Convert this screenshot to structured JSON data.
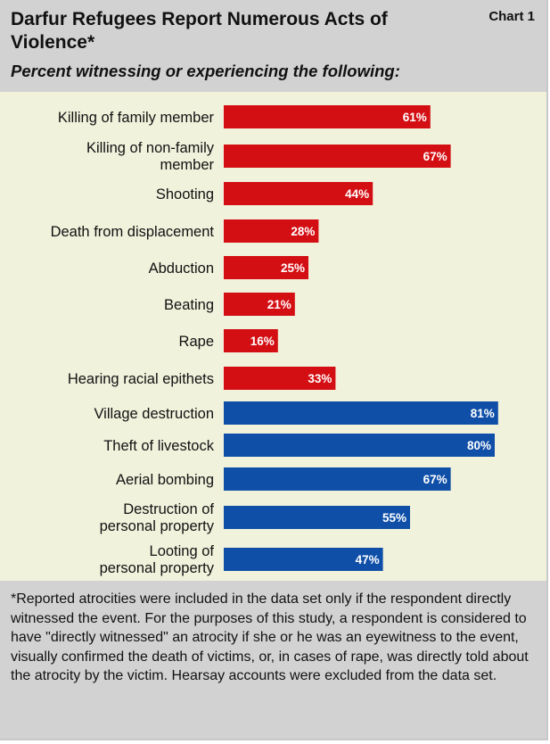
{
  "header": {
    "title": "Darfur Refugees Report Numerous Acts of Violence*",
    "chart_id": "Chart 1",
    "subtitle": "Percent witnessing or experiencing the following:"
  },
  "footer": {
    "note": "*Reported atrocities were included in the data set only if the respondent directly witnessed the event.  For the purposes of this study, a respondent is considered to have \"directly witnessed\" an atrocity if she or he was an eyewitness to the event, visually confirmed the death of victims, or, in cases of rape, was directly told about the atrocity by the victim.  Hearsay accounts were excluded from the data set."
  },
  "colors": {
    "red": "#d40f14",
    "blue": "#0f4fa8",
    "panel": "#f1f2dc",
    "band": "#d2d2d2"
  },
  "chart_data": {
    "type": "bar",
    "orientation": "horizontal",
    "unit": "%",
    "categories": [
      "Killing of family member",
      "Killing of non-family member",
      "Shooting",
      "Death from displacement",
      "Abduction",
      "Beating",
      "Rape",
      "Hearing racial epithets",
      "Village destruction",
      "Theft of livestock",
      "Aerial bombing",
      "Destruction of personal property",
      "Looting of personal property"
    ],
    "values": [
      61,
      67,
      44,
      28,
      25,
      21,
      16,
      33,
      81,
      80,
      67,
      55,
      47
    ],
    "value_labels": [
      "61%",
      "67%",
      "44%",
      "28%",
      "25%",
      "21%",
      "16%",
      "33%",
      "81%",
      "80%",
      "67%",
      "55%",
      "47%"
    ],
    "bar_colors": [
      "red",
      "red",
      "red",
      "red",
      "red",
      "red",
      "red",
      "red",
      "blue",
      "blue",
      "blue",
      "blue",
      "blue"
    ],
    "xlim": [
      0,
      100
    ],
    "grid": false,
    "legend": "none"
  }
}
